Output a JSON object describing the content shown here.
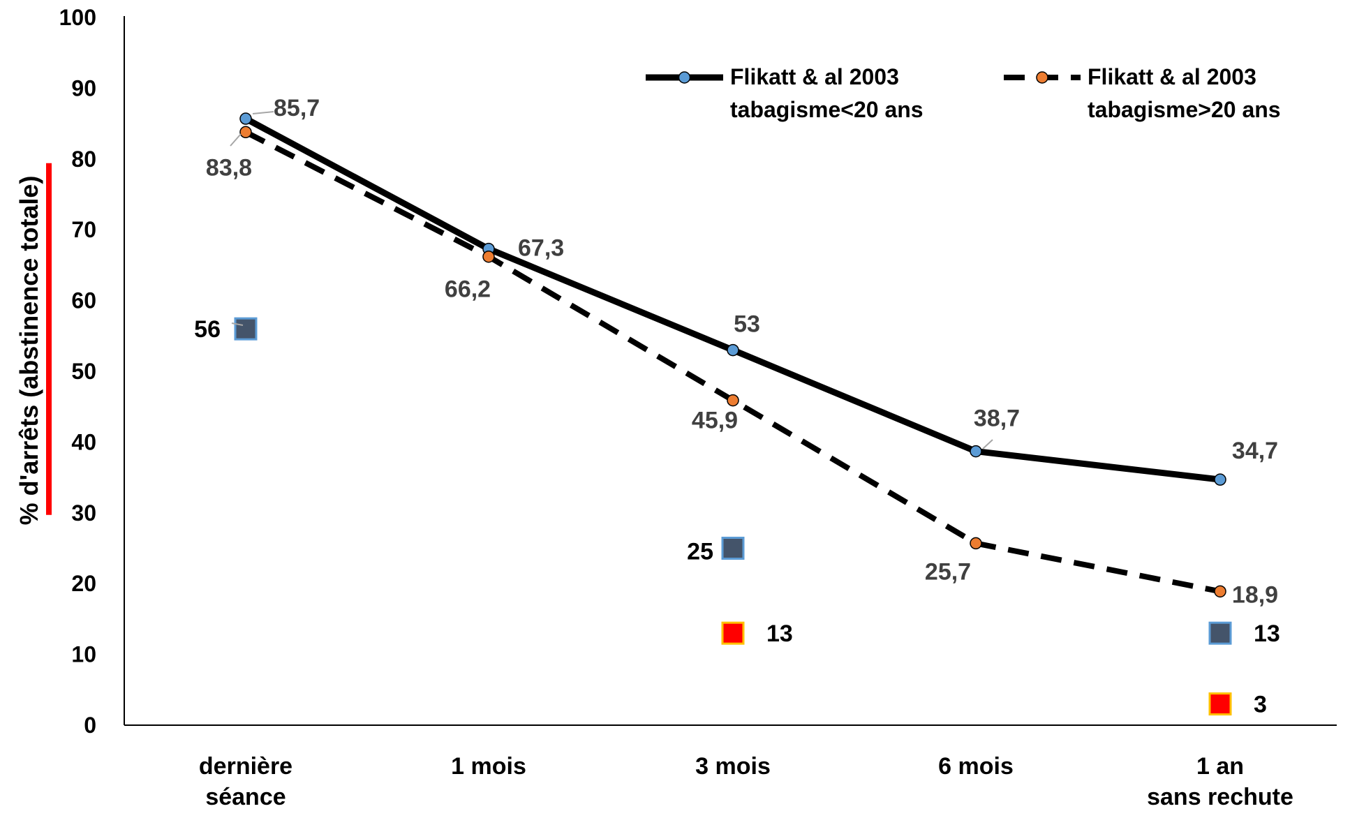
{
  "chart_data": {
    "type": "line",
    "categories": [
      "dernière séance",
      "1 mois",
      "3 mois",
      "6 mois",
      "1 an sans rechute"
    ],
    "category_lines": [
      [
        "dernière",
        "séance"
      ],
      [
        "1 mois"
      ],
      [
        "3 mois"
      ],
      [
        "6 mois"
      ],
      [
        "1 an",
        "sans rechute"
      ]
    ],
    "ylabel": "% d'arrêts (abstinence totale)",
    "ylim": [
      0,
      100
    ],
    "yticks": [
      "0",
      "10",
      "20",
      "30",
      "40",
      "50",
      "60",
      "70",
      "80",
      "90",
      "100"
    ],
    "grid": false,
    "legend_position": "top-right",
    "series": [
      {
        "name_lines": [
          "Flikatt & al 2003",
          "tabagisme<20 ans"
        ],
        "values": [
          85.7,
          67.3,
          53,
          38.7,
          34.7
        ],
        "labels": [
          "85,7",
          "67,3",
          "53",
          "38,7",
          "34,7"
        ],
        "line_color": "#000000",
        "line_style": "solid",
        "marker_color": "#5b9bd5"
      },
      {
        "name_lines": [
          "Flikatt & al 2003",
          "tabagisme>20 ans"
        ],
        "values": [
          83.8,
          66.2,
          45.9,
          25.7,
          18.9
        ],
        "labels": [
          "83,8",
          "66,2",
          "45,9",
          "25,7",
          "18,9"
        ],
        "line_color": "#000000",
        "line_style": "dashed",
        "marker_color": "#ed7d31"
      }
    ],
    "square_markers": [
      {
        "category": 0,
        "value": 56,
        "label": "56",
        "fill": "#44546a",
        "border": "#5b9bd5"
      },
      {
        "category": 2,
        "value": 25,
        "label": "25",
        "fill": "#44546a",
        "border": "#5b9bd5"
      },
      {
        "category": 2,
        "value": 13,
        "label": "13",
        "fill": "#ff0000",
        "border": "#ffc000"
      },
      {
        "category": 4,
        "value": 13,
        "label": "13",
        "fill": "#44546a",
        "border": "#5b9bd5"
      },
      {
        "category": 4,
        "value": 3,
        "label": "3",
        "fill": "#ff0000",
        "border": "#ffc000"
      }
    ],
    "highlight_bar": {
      "color": "#ff0000",
      "from": 30,
      "to": 80
    }
  }
}
